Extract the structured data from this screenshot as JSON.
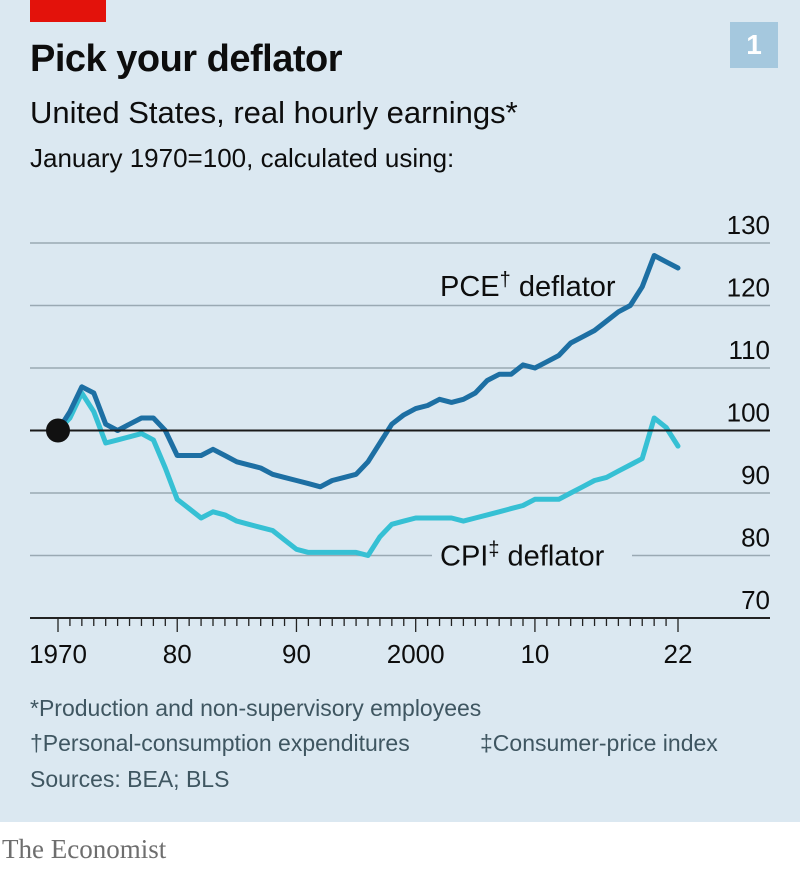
{
  "header": {
    "number": "1",
    "title": "Pick your deflator",
    "subtitle": "United States, real hourly earnings*",
    "subsubtitle": "January 1970=100, calculated using:"
  },
  "footnotes": {
    "star": "*Production and non-supervisory employees",
    "dagger": "†Personal-consumption expenditures",
    "ddagger": "‡Consumer-price index",
    "sources": "Sources: BEA; BLS"
  },
  "brand": "The Economist",
  "colors": {
    "pce": "#1d6fa3",
    "cpi": "#36c0d4",
    "grid": "#9aa9b3",
    "baseline": "#1a1a1a",
    "text": "#0d0d0d"
  },
  "chart_data": {
    "type": "line",
    "ylim": [
      70,
      130
    ],
    "xlim": [
      1970,
      2022
    ],
    "yticks": [
      130,
      120,
      110,
      100,
      90,
      80,
      70
    ],
    "xticks": [
      {
        "value": 1970,
        "label": "1970"
      },
      {
        "value": 1980,
        "label": "80"
      },
      {
        "value": 1990,
        "label": "90"
      },
      {
        "value": 2000,
        "label": "2000"
      },
      {
        "value": 2010,
        "label": "10"
      },
      {
        "value": 2022,
        "label": "22"
      }
    ],
    "start_marker": {
      "x": 1970,
      "y": 100
    },
    "series": [
      {
        "name": "PCE† deflator",
        "x": [
          1970,
          1971,
          1972,
          1973,
          1974,
          1975,
          1976,
          1977,
          1978,
          1979,
          1980,
          1981,
          1982,
          1983,
          1984,
          1985,
          1986,
          1987,
          1988,
          1989,
          1990,
          1991,
          1992,
          1993,
          1994,
          1995,
          1996,
          1997,
          1998,
          1999,
          2000,
          2001,
          2002,
          2003,
          2004,
          2005,
          2006,
          2007,
          2008,
          2009,
          2010,
          2011,
          2012,
          2013,
          2014,
          2015,
          2016,
          2017,
          2018,
          2019,
          2020,
          2021,
          2022
        ],
        "values": [
          100,
          103,
          107,
          106,
          101,
          100,
          101,
          102,
          102,
          100,
          96,
          96,
          96,
          97,
          96,
          95,
          94.5,
          94,
          93,
          92.5,
          92,
          91.5,
          91,
          92,
          92.5,
          93,
          95,
          98,
          101,
          102.5,
          103.5,
          104,
          105,
          104.5,
          105,
          106,
          108,
          109,
          109,
          110.5,
          110,
          111,
          112,
          114,
          115,
          116,
          117.5,
          119,
          120,
          123,
          128,
          127,
          126
        ]
      },
      {
        "name": "CPI‡ deflator",
        "x": [
          1970,
          1971,
          1972,
          1973,
          1974,
          1975,
          1976,
          1977,
          1978,
          1979,
          1980,
          1981,
          1982,
          1983,
          1984,
          1985,
          1986,
          1987,
          1988,
          1989,
          1990,
          1991,
          1992,
          1993,
          1994,
          1995,
          1996,
          1997,
          1998,
          1999,
          2000,
          2001,
          2002,
          2003,
          2004,
          2005,
          2006,
          2007,
          2008,
          2009,
          2010,
          2011,
          2012,
          2013,
          2014,
          2015,
          2016,
          2017,
          2018,
          2019,
          2020,
          2021,
          2022
        ],
        "values": [
          100,
          102,
          106,
          103,
          98,
          98.5,
          99,
          99.5,
          98.5,
          94,
          89,
          87.5,
          86,
          87,
          86.5,
          85.5,
          85,
          84.5,
          84,
          82.5,
          81,
          80.5,
          80.5,
          80.5,
          80.5,
          80.5,
          80,
          83,
          85,
          85.5,
          86,
          86,
          86,
          86,
          85.5,
          86,
          86.5,
          87,
          87.5,
          88,
          89,
          89,
          89,
          90,
          91,
          92,
          92.5,
          93.5,
          94.5,
          95.5,
          102,
          100.5,
          97.5
        ]
      }
    ],
    "annotations": [
      {
        "series": 0,
        "mark": "†",
        "text": "PCE",
        "rest": " deflator"
      },
      {
        "series": 1,
        "mark": "‡",
        "text": "CPI",
        "rest": " deflator"
      }
    ]
  }
}
